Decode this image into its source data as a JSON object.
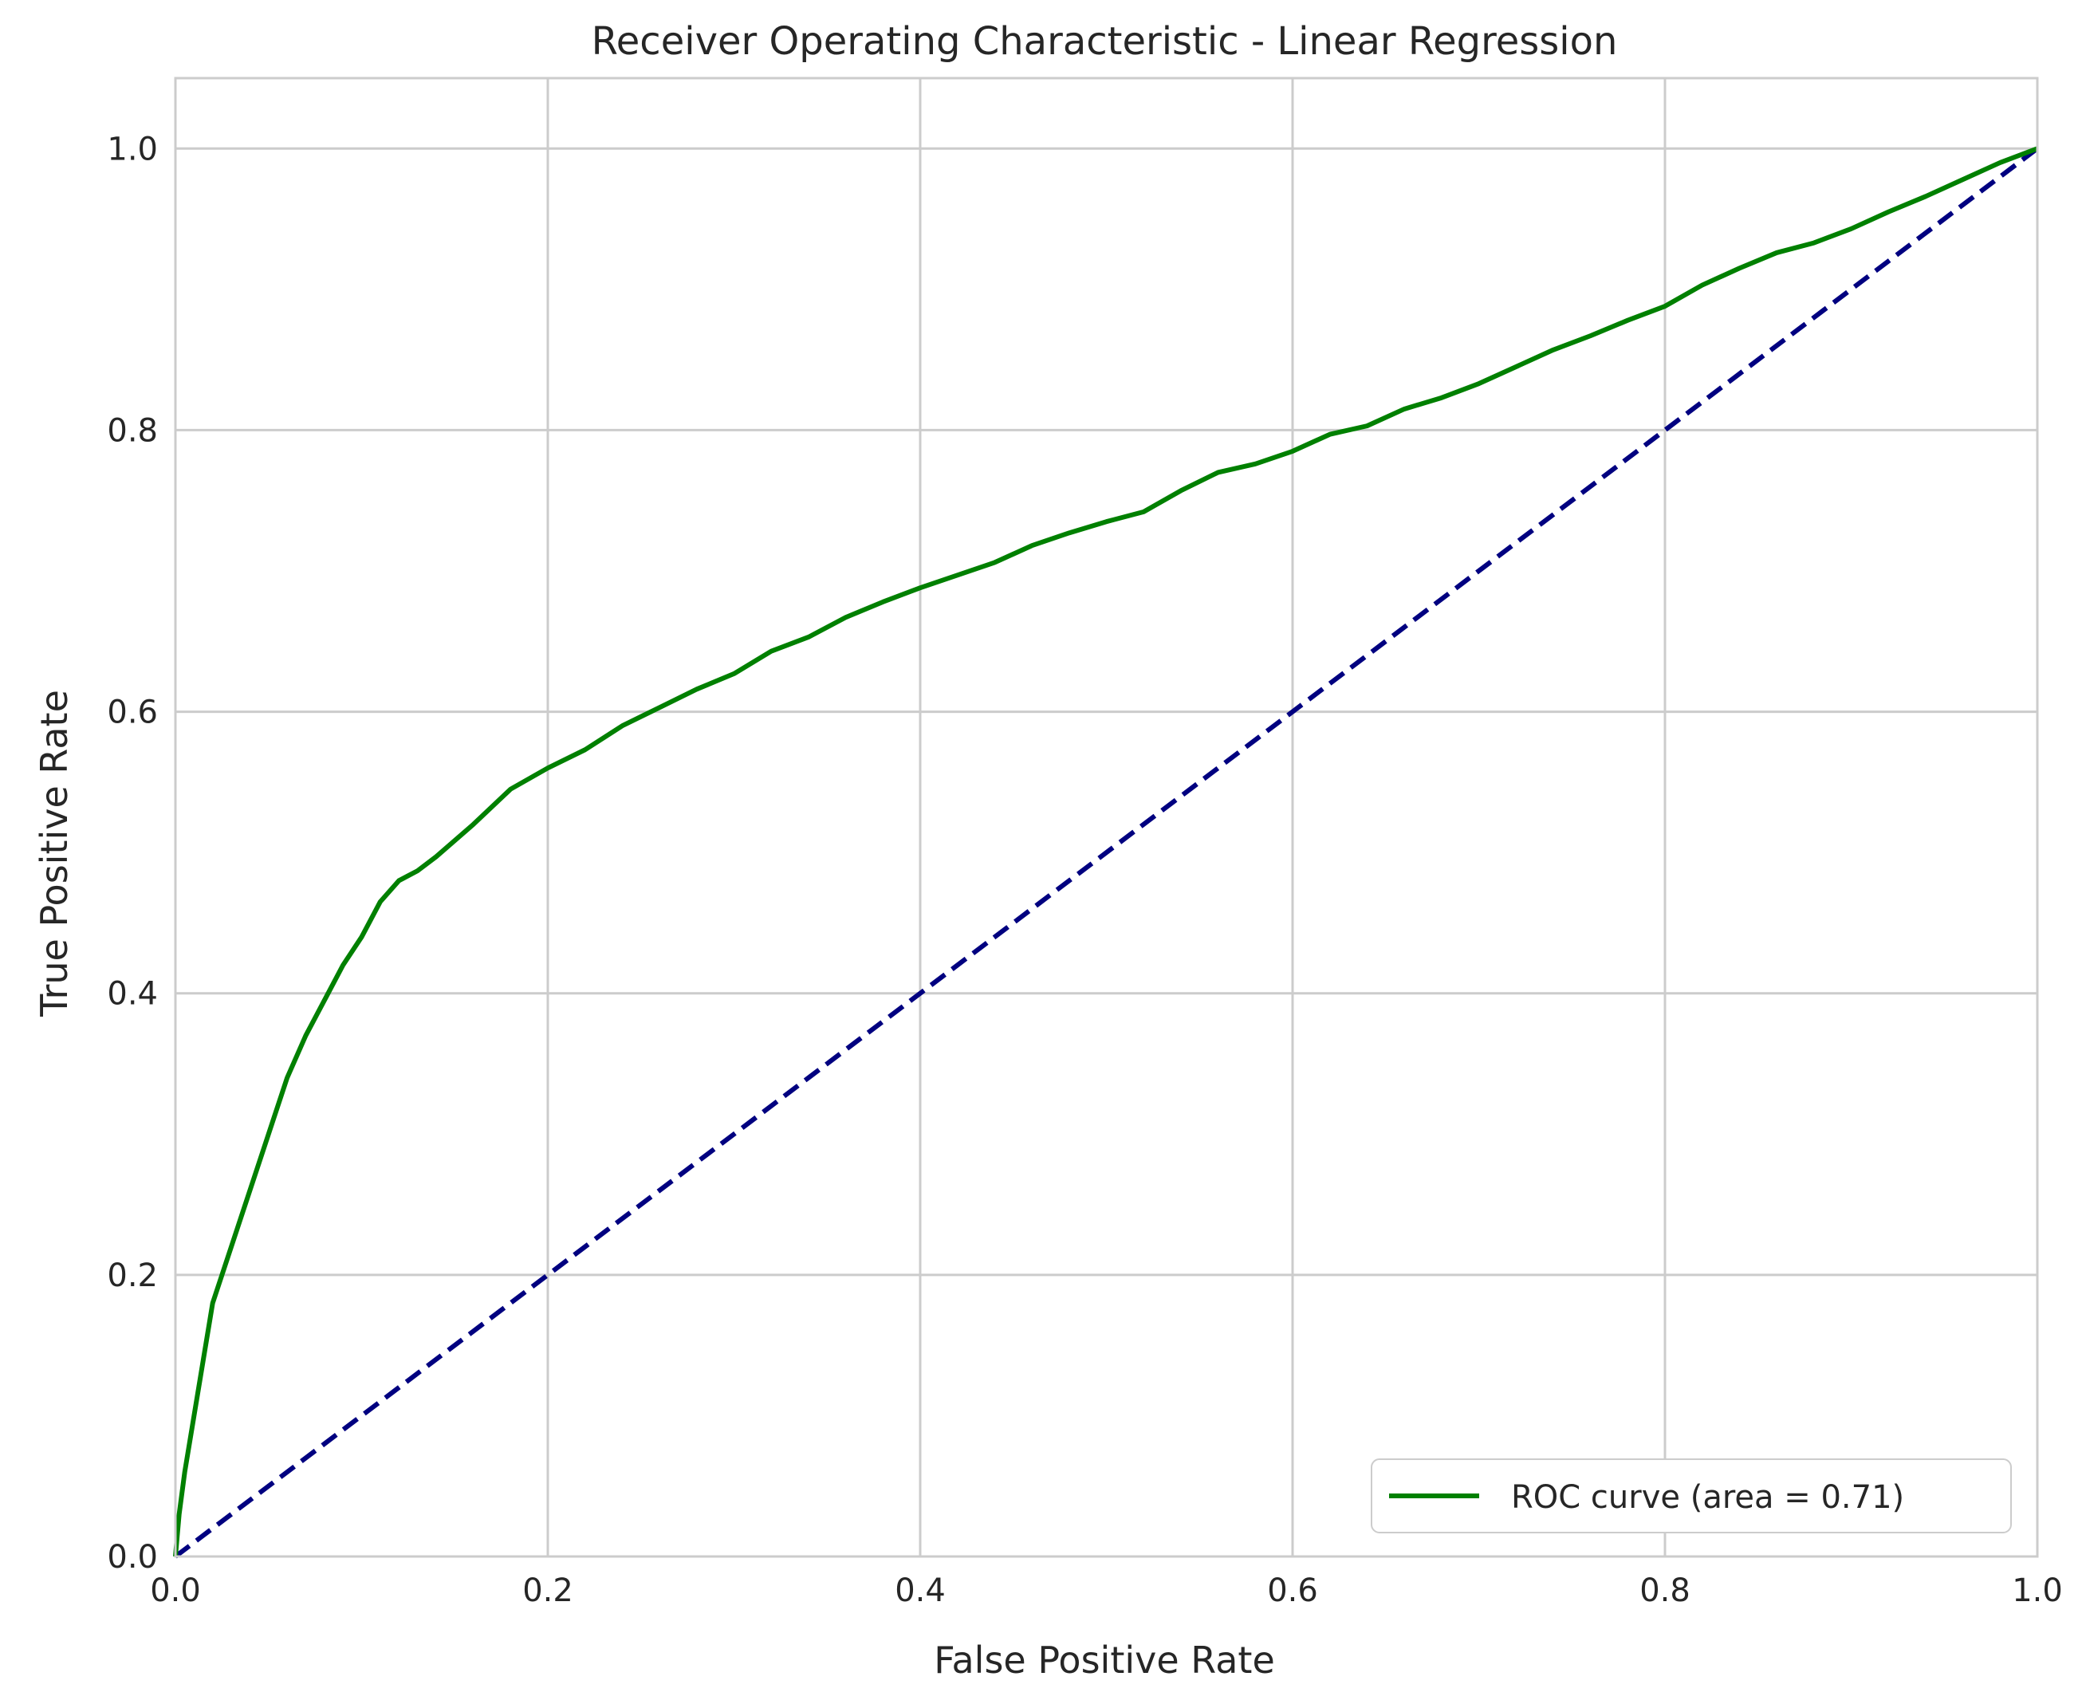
{
  "chart_data": {
    "type": "line",
    "title": "Receiver Operating Characteristic - Linear Regression",
    "xlabel": "False Positive Rate",
    "ylabel": "True Positive Rate",
    "xlim": [
      0.0,
      1.0
    ],
    "ylim": [
      0.0,
      1.05
    ],
    "x_ticks": [
      "0.0",
      "0.2",
      "0.4",
      "0.6",
      "0.8",
      "1.0"
    ],
    "y_ticks": [
      "0.0",
      "0.2",
      "0.4",
      "0.6",
      "0.8",
      "1.0"
    ],
    "grid": true,
    "legend_placement": "lower-right",
    "series": [
      {
        "name": "ROC curve (area = 0.71)",
        "color": "#008000",
        "style": "solid",
        "points": [
          [
            0.0,
            0.0
          ],
          [
            0.002,
            0.03
          ],
          [
            0.005,
            0.06
          ],
          [
            0.01,
            0.1
          ],
          [
            0.015,
            0.14
          ],
          [
            0.02,
            0.18
          ],
          [
            0.03,
            0.22
          ],
          [
            0.04,
            0.26
          ],
          [
            0.05,
            0.3
          ],
          [
            0.06,
            0.34
          ],
          [
            0.07,
            0.37
          ],
          [
            0.08,
            0.395
          ],
          [
            0.09,
            0.42
          ],
          [
            0.1,
            0.44
          ],
          [
            0.11,
            0.465
          ],
          [
            0.12,
            0.48
          ],
          [
            0.13,
            0.487
          ],
          [
            0.14,
            0.497
          ],
          [
            0.16,
            0.52
          ],
          [
            0.18,
            0.545
          ],
          [
            0.2,
            0.56
          ],
          [
            0.22,
            0.573
          ],
          [
            0.24,
            0.59
          ],
          [
            0.26,
            0.603
          ],
          [
            0.28,
            0.616
          ],
          [
            0.3,
            0.627
          ],
          [
            0.32,
            0.643
          ],
          [
            0.34,
            0.653
          ],
          [
            0.36,
            0.667
          ],
          [
            0.38,
            0.678
          ],
          [
            0.4,
            0.688
          ],
          [
            0.42,
            0.697
          ],
          [
            0.44,
            0.706
          ],
          [
            0.46,
            0.718
          ],
          [
            0.48,
            0.727
          ],
          [
            0.5,
            0.735
          ],
          [
            0.52,
            0.742
          ],
          [
            0.54,
            0.757
          ],
          [
            0.56,
            0.77
          ],
          [
            0.58,
            0.776
          ],
          [
            0.6,
            0.785
          ],
          [
            0.62,
            0.797
          ],
          [
            0.64,
            0.803
          ],
          [
            0.66,
            0.815
          ],
          [
            0.68,
            0.823
          ],
          [
            0.7,
            0.833
          ],
          [
            0.72,
            0.845
          ],
          [
            0.74,
            0.857
          ],
          [
            0.76,
            0.867
          ],
          [
            0.78,
            0.878
          ],
          [
            0.8,
            0.888
          ],
          [
            0.82,
            0.903
          ],
          [
            0.84,
            0.915
          ],
          [
            0.86,
            0.926
          ],
          [
            0.88,
            0.933
          ],
          [
            0.9,
            0.943
          ],
          [
            0.92,
            0.955
          ],
          [
            0.94,
            0.966
          ],
          [
            0.96,
            0.978
          ],
          [
            0.98,
            0.99
          ],
          [
            1.0,
            1.0
          ]
        ]
      },
      {
        "name": "",
        "color": "#000080",
        "style": "dashed",
        "points": [
          [
            0.0,
            0.0
          ],
          [
            1.0,
            1.0
          ]
        ]
      }
    ]
  },
  "legend": {
    "label": "ROC curve (area = 0.71)"
  }
}
